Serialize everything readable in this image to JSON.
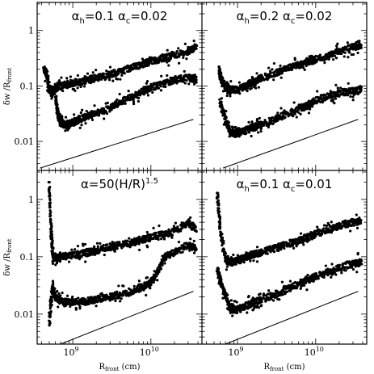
{
  "chart_data": {
    "type": "scatter",
    "xscale": "log",
    "yscale": "log",
    "xlim": [
      350000000.0,
      45000000000.0
    ],
    "ylim": [
      0.003,
      3.2
    ],
    "xticks": [
      {
        "value": 1000000000.0,
        "base": "10",
        "exp": "9"
      },
      {
        "value": 10000000000.0,
        "base": "10",
        "exp": "10"
      }
    ],
    "yticks": [
      {
        "value": 0.01,
        "label": "0.01"
      },
      {
        "value": 0.1,
        "label": "0.1"
      },
      {
        "value": 1,
        "label": "1"
      }
    ],
    "xlabel": {
      "main": "R",
      "sub": "front",
      "tail": " (cm)"
    },
    "ylabel": {
      "main": "δw /R",
      "sub": "front"
    },
    "grid": false,
    "legend": "none",
    "marker_color": "#000000",
    "panels": [
      {
        "id": "top-left",
        "title": {
          "a": "α",
          "a_sub": "h",
          "a_val": "=0.1",
          "b": "α",
          "b_sub": "c",
          "b_val": "=0.02"
        },
        "series": [
          {
            "x": [
              430000000.0,
              460000000.0,
              500000000.0,
              540000000.0,
              600000000.0,
              700000000.0,
              900000000.0,
              1200000000.0,
              1600000000.0,
              2000000000.0,
              3000000000.0,
              4000000000.0,
              6000000000.0,
              8000000000.0,
              10000000000.0,
              15000000000.0,
              20000000000.0,
              30000000000.0,
              38000000000.0
            ],
            "y": [
              0.19,
              0.17,
              0.085,
              0.083,
              0.09,
              0.1,
              0.11,
              0.12,
              0.13,
              0.14,
              0.16,
              0.18,
              0.22,
              0.25,
              0.28,
              0.32,
              0.36,
              0.42,
              0.5
            ]
          },
          {
            "x": [
              600000000.0,
              650000000.0,
              700000000.0,
              800000000.0,
              900000000.0,
              1000000000.0,
              1200000000.0,
              1500000000.0,
              2000000000.0,
              3000000000.0,
              4000000000.0,
              6000000000.0,
              8000000000.0,
              10000000000.0,
              15000000000.0,
              20000000000.0,
              30000000000.0,
              38000000000.0
            ],
            "y": [
              0.06,
              0.03,
              0.022,
              0.02,
              0.021,
              0.022,
              0.025,
              0.028,
              0.032,
              0.04,
              0.05,
              0.065,
              0.08,
              0.095,
              0.11,
              0.13,
              0.14,
              0.13
            ]
          }
        ],
        "reference_line": {
          "x": [
            380000000.0,
            35000000000.0
          ],
          "y": [
            0.0033,
            0.025
          ]
        }
      },
      {
        "id": "top-right",
        "title": {
          "a": "α",
          "a_sub": "h",
          "a_val": "=0.2",
          "b": "α",
          "b_sub": "c",
          "b_val": "=0.02"
        },
        "series": [
          {
            "x": [
              580000000.0,
              620000000.0,
              700000000.0,
              800000000.0,
              1000000000.0,
              1300000000.0,
              1600000000.0,
              2000000000.0,
              3000000000.0,
              4000000000.0,
              6000000000.0,
              8000000000.0,
              10000000000.0,
              15000000000.0,
              20000000000.0,
              30000000000.0,
              38000000000.0
            ],
            "y": [
              0.2,
              0.13,
              0.1,
              0.085,
              0.085,
              0.1,
              0.12,
              0.14,
              0.17,
              0.2,
              0.24,
              0.27,
              0.3,
              0.35,
              0.42,
              0.5,
              0.55
            ]
          },
          {
            "x": [
              600000000.0,
              700000000.0,
              800000000.0,
              900000000.0,
              1000000000.0,
              1300000000.0,
              1600000000.0,
              2000000000.0,
              3000000000.0,
              4000000000.0,
              6000000000.0,
              8000000000.0,
              10000000000.0,
              15000000000.0,
              20000000000.0,
              30000000000.0,
              38000000000.0
            ],
            "y": [
              0.05,
              0.025,
              0.015,
              0.014,
              0.014,
              0.016,
              0.018,
              0.02,
              0.025,
              0.03,
              0.038,
              0.045,
              0.055,
              0.065,
              0.075,
              0.08,
              0.085
            ]
          }
        ],
        "reference_line": {
          "x": [
            650000000.0,
            35000000000.0
          ],
          "y": [
            0.0033,
            0.025
          ]
        }
      },
      {
        "id": "bottom-left",
        "title": {
          "a": "α",
          "a_sub": "",
          "a_val": "=50(H/R)",
          "a_sup": "1.5",
          "b": "",
          "b_sub": "",
          "b_val": ""
        },
        "series": [
          {
            "x": [
              500000000.0,
              530000000.0,
              560000000.0,
              600000000.0,
              700000000.0,
              900000000.0,
              1200000000.0,
              1600000000.0,
              2000000000.0,
              3000000000.0,
              4000000000.0,
              6000000000.0,
              8000000000.0,
              10000000000.0,
              15000000000.0,
              20000000000.0,
              30000000000.0,
              38000000000.0
            ],
            "y": [
              1.8,
              0.25,
              0.095,
              0.092,
              0.1,
              0.105,
              0.11,
              0.12,
              0.13,
              0.15,
              0.16,
              0.18,
              0.2,
              0.22,
              0.25,
              0.28,
              0.4,
              0.3
            ]
          },
          {
            "x": [
              500000000.0,
              550000000.0,
              600000000.0,
              700000000.0,
              900000000.0,
              1200000000.0,
              1600000000.0,
              2000000000.0,
              3000000000.0,
              4000000000.0,
              6000000000.0,
              8000000000.0,
              10000000000.0,
              12000000000.0,
              15000000000.0,
              20000000000.0,
              30000000000.0,
              38000000000.0
            ],
            "y": [
              0.007,
              0.03,
              0.02,
              0.017,
              0.016,
              0.016,
              0.017,
              0.018,
              0.02,
              0.022,
              0.026,
              0.03,
              0.036,
              0.05,
              0.1,
              0.12,
              0.16,
              0.14
            ]
          }
        ],
        "reference_line": {
          "x": [
            700000000.0,
            35000000000.0
          ],
          "y": [
            0.003,
            0.025
          ]
        }
      },
      {
        "id": "bottom-right",
        "title": {
          "a": "α",
          "a_sub": "h",
          "a_val": "=0.1",
          "b": "α",
          "b_sub": "c",
          "b_val": "=0.01"
        },
        "series": [
          {
            "x": [
              550000000.0,
              600000000.0,
              700000000.0,
              800000000.0,
              1000000000.0,
              1300000000.0,
              1600000000.0,
              2000000000.0,
              3000000000.0,
              4000000000.0,
              6000000000.0,
              8000000000.0,
              10000000000.0,
              15000000000.0,
              20000000000.0,
              30000000000.0,
              38000000000.0
            ],
            "y": [
              1.2,
              0.3,
              0.09,
              0.08,
              0.085,
              0.1,
              0.11,
              0.12,
              0.14,
              0.16,
              0.19,
              0.22,
              0.25,
              0.3,
              0.35,
              0.4,
              0.42
            ]
          },
          {
            "x": [
              550000000.0,
              600000000.0,
              700000000.0,
              800000000.0,
              900000000.0,
              1000000000.0,
              1300000000.0,
              1600000000.0,
              2000000000.0,
              3000000000.0,
              4000000000.0,
              6000000000.0,
              8000000000.0,
              10000000000.0,
              15000000000.0,
              20000000000.0,
              30000000000.0,
              38000000000.0
            ],
            "y": [
              0.06,
              0.04,
              0.02,
              0.013,
              0.012,
              0.012,
              0.014,
              0.016,
              0.018,
              0.022,
              0.026,
              0.033,
              0.04,
              0.045,
              0.055,
              0.065,
              0.075,
              0.08
            ]
          }
        ],
        "reference_line": {
          "x": [
            700000000.0,
            35000000000.0
          ],
          "y": [
            0.003,
            0.025
          ]
        }
      }
    ]
  }
}
